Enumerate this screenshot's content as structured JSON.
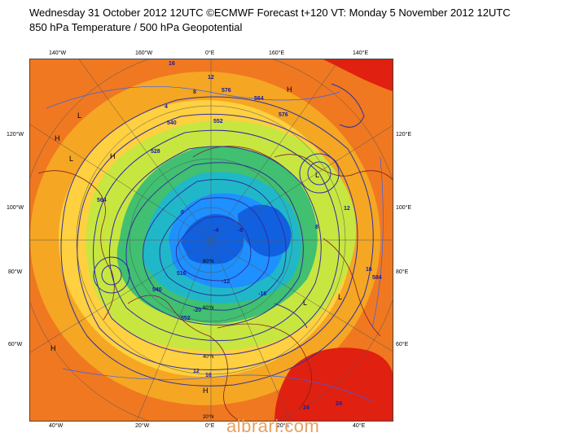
{
  "header": {
    "title_line1": "Wednesday 31 October 2012 12UTC ©ECMWF Forecast t+120 VT: Monday 5 November 2012 12UTC",
    "title_line2": "850 hPa Temperature / 500 hPa Geopotential"
  },
  "map": {
    "projection": "polar stereographic (north pole)",
    "labels": {
      "top_140w": "140°W",
      "top_160w": "160°W",
      "top_0e": "0°E",
      "top_160e": "160°E",
      "top_140e": "140°E",
      "left_120w": "120°W",
      "left_100w": "100°W",
      "left_80w": "80°W",
      "left_60w": "60°W",
      "right_120e": "120°E",
      "right_100e": "100°E",
      "right_80e": "80°E",
      "right_60e": "60°E",
      "bottom_40w": "40°W",
      "bottom_20w": "20°W",
      "bottom_0e": "0°E",
      "bottom_20e": "20°E",
      "bottom_40e": "40°E",
      "inner_80n": "80°N",
      "inner_60n": "60°N",
      "inner_40n": "40°N",
      "inner_20n": "20°N"
    },
    "contour_labels": [
      "16",
      "12",
      "8",
      "4",
      "0",
      "-4",
      "-8",
      "-12",
      "-16",
      "-20",
      "576",
      "564",
      "552",
      "540",
      "528",
      "516",
      "540",
      "552",
      "564",
      "576",
      "584",
      "12",
      "16",
      "8",
      "24",
      "24",
      "16",
      "12"
    ],
    "pressure_labels": [
      "H",
      "H",
      "H",
      "L",
      "L",
      "L",
      "H",
      "L",
      "H",
      "L"
    ],
    "colors": {
      "ocean_far": "#f07820",
      "warm": "#f5a623",
      "mild": "#ffd040",
      "cool": "#c8e640",
      "cold": "#40c070",
      "colder": "#20b8c8",
      "coldest": "#1e90ff",
      "very_cold": "#1060e0",
      "hot": "#e02010",
      "geopotential": "#3030a0",
      "coast": "#802020"
    }
  },
  "footer": {
    "watermark": "albrari.com"
  }
}
